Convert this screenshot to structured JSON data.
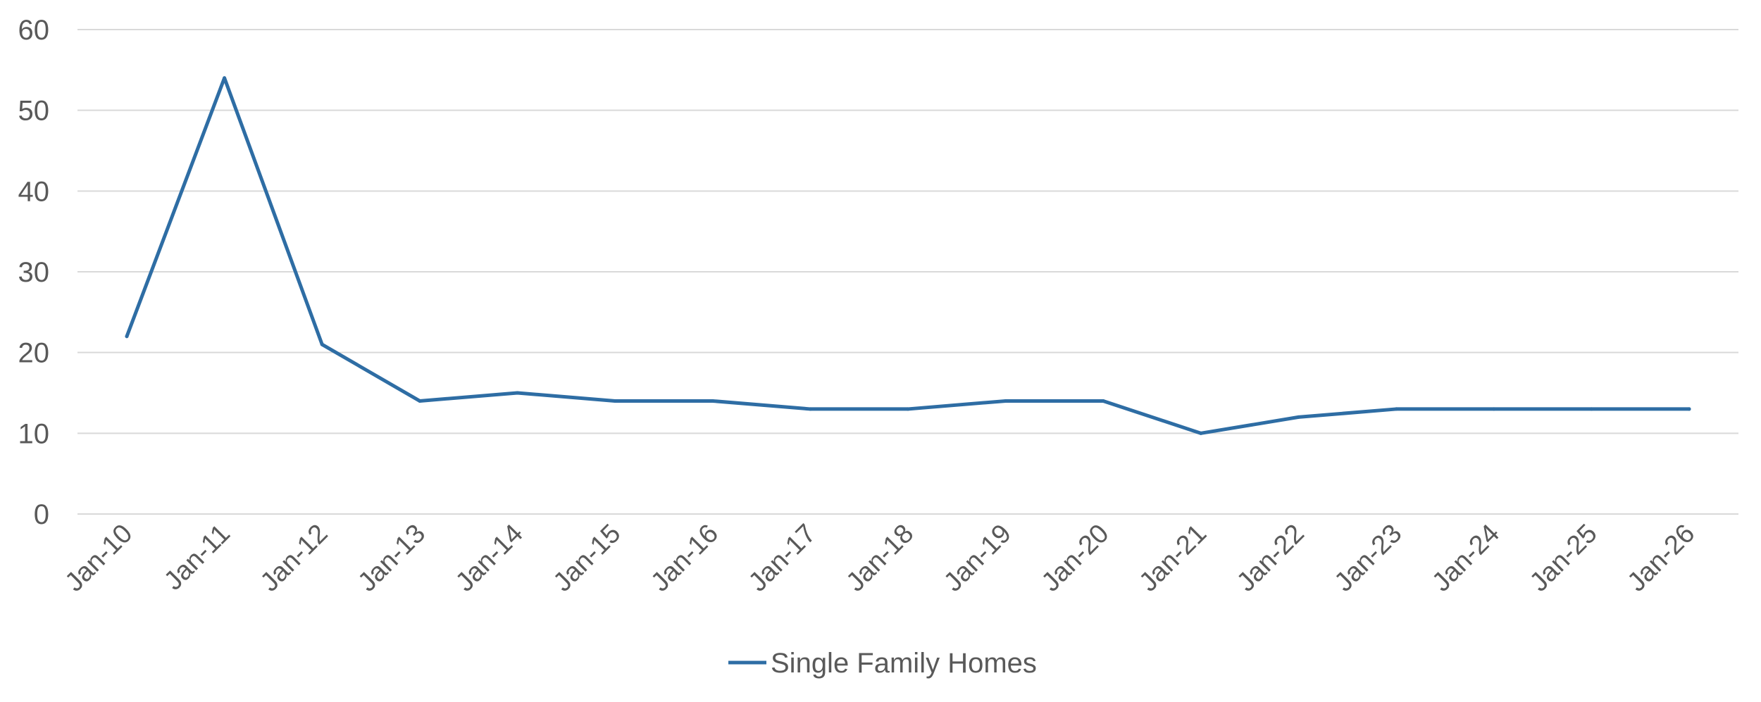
{
  "chart_data": {
    "type": "line",
    "categories": [
      "Jan-10",
      "Jan-11",
      "Jan-12",
      "Jan-13",
      "Jan-14",
      "Jan-15",
      "Jan-16",
      "Jan-17",
      "Jan-18",
      "Jan-19",
      "Jan-20",
      "Jan-21",
      "Jan-22",
      "Jan-23",
      "Jan-24",
      "Jan-25",
      "Jan-26"
    ],
    "series": [
      {
        "name": "Single Family Homes",
        "color": "#2e6da4",
        "values": [
          22,
          54,
          21,
          14,
          15,
          14,
          14,
          13,
          13,
          14,
          14,
          10,
          12,
          13,
          13,
          13,
          13
        ]
      }
    ],
    "title": "",
    "xlabel": "",
    "ylabel": "",
    "ylim": [
      0,
      60
    ],
    "yticks": [
      0,
      10,
      20,
      30,
      40,
      50,
      60
    ],
    "grid": "horizontal",
    "legend": "bottom-center"
  }
}
